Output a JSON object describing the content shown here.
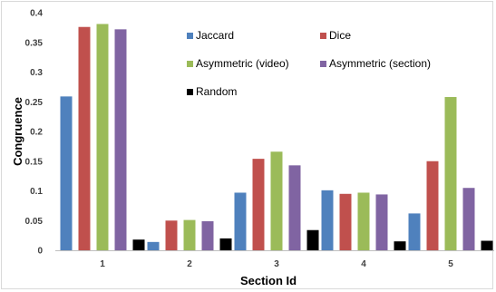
{
  "chart_data": {
    "type": "bar",
    "title": "",
    "xlabel": "Section Id",
    "ylabel": "Congruence",
    "ylim": [
      0,
      0.4
    ],
    "yticks": [
      "0",
      "0.05",
      "0.1",
      "0.15",
      "0.2",
      "0.25",
      "0.3",
      "0.35",
      "0.4"
    ],
    "categories": [
      "1",
      "2",
      "3",
      "4",
      "5"
    ],
    "grid": false,
    "legend_position": "top-right (inside plot)",
    "series": [
      {
        "name": "Jaccard",
        "color": "#4f81bd",
        "values": [
          0.259,
          0.014,
          0.097,
          0.101,
          0.062
        ]
      },
      {
        "name": "Dice",
        "color": "#c0504d",
        "values": [
          0.376,
          0.05,
          0.154,
          0.095,
          0.15
        ]
      },
      {
        "name": "Asymmetric (video)",
        "color": "#9bbb59",
        "values": [
          0.381,
          0.051,
          0.166,
          0.097,
          0.258
        ]
      },
      {
        "name": "Asymmetric (section)",
        "color": "#8064a2",
        "values": [
          0.372,
          0.049,
          0.143,
          0.094,
          0.105
        ]
      },
      {
        "name": "Random",
        "color": "#000000",
        "values": [
          0.018,
          0.02,
          0.034,
          0.015,
          0.016
        ]
      }
    ]
  }
}
